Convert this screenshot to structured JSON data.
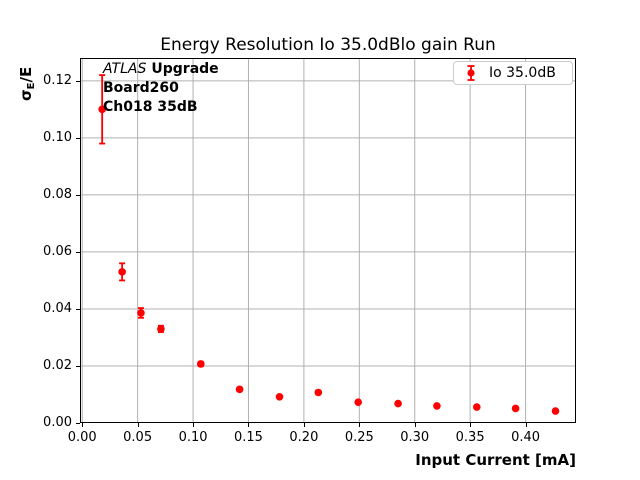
{
  "figure": {
    "background": "#ffffff"
  },
  "chart_data": {
    "type": "scatter",
    "title": "Energy Resolution Io 35.0dBlo gain Run",
    "xlabel": "Input Current [mA]",
    "ylabel": "σ_E/E",
    "ylabel_parts": {
      "sigma": "σ",
      "subscript": "E",
      "rest": "/E"
    },
    "annotation": {
      "line1_italic": "ATLAS",
      "line1_bold": "Upgrade",
      "line2": "Board260",
      "line3": "Ch018 35dB"
    },
    "legend": {
      "label": "Io 35.0dB",
      "position": "upper right"
    },
    "series": [
      {
        "name": "Io 35.0dB",
        "color": "#ff0000",
        "x": [
          0.018,
          0.036,
          0.053,
          0.071,
          0.107,
          0.142,
          0.178,
          0.213,
          0.249,
          0.285,
          0.32,
          0.356,
          0.391,
          0.427
        ],
        "y": [
          0.11,
          0.053,
          0.0386,
          0.033,
          0.0207,
          0.0118,
          0.0092,
          0.0107,
          0.0073,
          0.0068,
          0.006,
          0.0056,
          0.0051,
          0.0042
        ],
        "yerr": [
          0.012,
          0.003,
          0.0017,
          0.0011,
          0.0008,
          0.0005,
          0.0004,
          0.0004,
          0.0003,
          0.0003,
          0.0003,
          0.0002,
          0.0002,
          0.0002
        ]
      }
    ],
    "xlim": [
      -0.002,
      0.4455
    ],
    "ylim": [
      0,
      0.128
    ],
    "xticks": [
      0,
      0.05,
      0.1,
      0.15,
      0.2,
      0.25,
      0.3,
      0.35,
      0.4
    ],
    "xtick_labels": [
      "0.00",
      "0.05",
      "0.10",
      "0.15",
      "0.20",
      "0.25",
      "0.30",
      "0.35",
      "0.40"
    ],
    "yticks": [
      0,
      0.02,
      0.04,
      0.06,
      0.08,
      0.1,
      0.12
    ],
    "ytick_labels": [
      "0.00",
      "0.02",
      "0.04",
      "0.06",
      "0.08",
      "0.10",
      "0.12"
    ],
    "grid": true,
    "grid_color": "#b0b0b0",
    "frame_color": "#000000",
    "legend_border_color": "#cccccc"
  }
}
